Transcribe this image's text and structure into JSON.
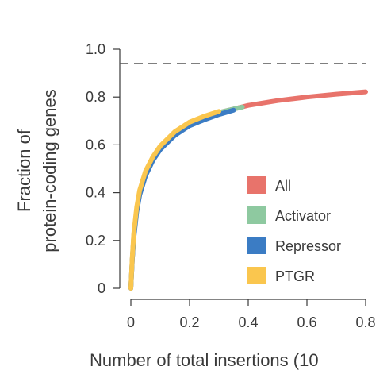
{
  "chart_data": {
    "type": "line",
    "ylabel_line1": "Fraction of",
    "ylabel_line2": "protein-coding genes",
    "xlabel": "Number of total insertions (10",
    "xlim": [
      0,
      0.8
    ],
    "ylim": [
      0,
      1.0
    ],
    "x_ticks": [
      "0",
      "0.2",
      "0.4",
      "0.6",
      "0.8"
    ],
    "y_ticks": [
      "0",
      "0.2",
      "0.4",
      "0.6",
      "0.8",
      "1.0"
    ],
    "reference_line": {
      "y": 0.94,
      "style": "dashed"
    },
    "legend_position": "lower-right",
    "series": [
      {
        "name": "All",
        "color": "#e8736b",
        "x": [
          0,
          0.005,
          0.01,
          0.02,
          0.03,
          0.05,
          0.075,
          0.1,
          0.15,
          0.2,
          0.25,
          0.3,
          0.35,
          0.4,
          0.5,
          0.6,
          0.7,
          0.8
        ],
        "y": [
          0,
          0.12,
          0.22,
          0.33,
          0.4,
          0.48,
          0.545,
          0.59,
          0.65,
          0.69,
          0.715,
          0.735,
          0.75,
          0.765,
          0.785,
          0.8,
          0.812,
          0.822
        ]
      },
      {
        "name": "Activator",
        "color": "#8ec9a0",
        "x": [
          0,
          0.005,
          0.01,
          0.02,
          0.03,
          0.05,
          0.075,
          0.1,
          0.15,
          0.2,
          0.25,
          0.3,
          0.35,
          0.38
        ],
        "y": [
          0,
          0.12,
          0.22,
          0.33,
          0.4,
          0.48,
          0.545,
          0.59,
          0.65,
          0.69,
          0.715,
          0.735,
          0.75,
          0.758
        ]
      },
      {
        "name": "Repressor",
        "color": "#3b7cc4",
        "x": [
          0,
          0.005,
          0.01,
          0.02,
          0.03,
          0.05,
          0.075,
          0.1,
          0.15,
          0.2,
          0.25,
          0.3,
          0.35
        ],
        "y": [
          0,
          0.12,
          0.21,
          0.32,
          0.39,
          0.47,
          0.535,
          0.58,
          0.64,
          0.68,
          0.705,
          0.727,
          0.745
        ]
      },
      {
        "name": "PTGR",
        "color": "#fac64e",
        "x": [
          0,
          0.005,
          0.01,
          0.02,
          0.03,
          0.05,
          0.075,
          0.1,
          0.15,
          0.2,
          0.25,
          0.3
        ],
        "y": [
          0,
          0.13,
          0.23,
          0.34,
          0.41,
          0.49,
          0.55,
          0.595,
          0.655,
          0.695,
          0.72,
          0.74
        ]
      }
    ]
  }
}
